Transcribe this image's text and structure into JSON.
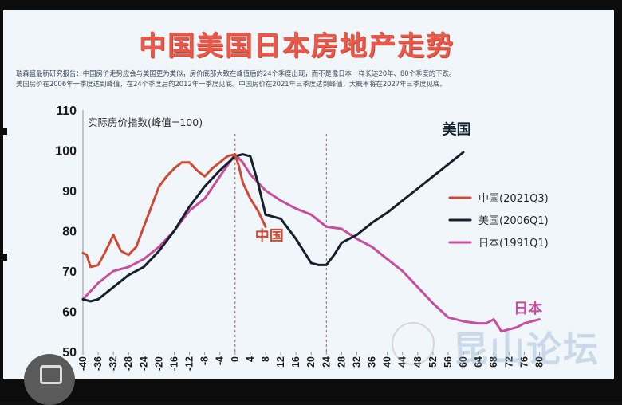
{
  "title": "中国美国日本房地产走势",
  "note": {
    "line1": "瑞森盛最新研究报告：中国房价走势应会与美国更为类似，房价底部大致在峰值后的24个季度出现，而不是像日本一样长达20年、80个季度的下跌。",
    "line2": "美国房价在2006年一季度达到峰值，在24个季度后的2012年一季度见底。中国房价在2021年三季度达到峰值，大概率将在2027年三季度见底。"
  },
  "watermark": "昆山论坛",
  "chart_data": {
    "type": "line",
    "ylabel": "实际房价指数(峰值=100)",
    "ylim": [
      50,
      110
    ],
    "yticks": [
      50,
      60,
      70,
      80,
      90,
      100,
      110
    ],
    "xlim": [
      -40,
      82
    ],
    "xticks": [
      -40,
      -36,
      -32,
      -28,
      -24,
      -20,
      -16,
      -12,
      -8,
      -4,
      0,
      4,
      8,
      12,
      16,
      20,
      24,
      28,
      32,
      36,
      40,
      44,
      48,
      52,
      56,
      60,
      64,
      68,
      72,
      76,
      80
    ],
    "xtick_labels": [
      "-40",
      "-36",
      "-32",
      "-28",
      "-24",
      "-20",
      "-16",
      "-12",
      "-8",
      "-4",
      "0",
      "4",
      "8",
      "12",
      "16",
      "20",
      "24",
      "28",
      "32",
      "36",
      "40",
      "44",
      "48",
      "52",
      "56",
      "60",
      "64",
      "68",
      "72",
      "76",
      "80"
    ],
    "reference_lines_x": [
      0,
      24
    ],
    "grid": false,
    "legend_position": "right",
    "series": [
      {
        "name": "中国(2021Q3)",
        "end_label": "中国",
        "color": "#cf4a35",
        "x": [
          -40,
          -39,
          -38,
          -36,
          -34,
          -32,
          -30,
          -28,
          -26,
          -24,
          -22,
          -20,
          -18,
          -16,
          -14,
          -12,
          -10,
          -8,
          -6,
          -4,
          -2,
          0,
          1,
          2,
          4,
          6,
          8
        ],
        "y": [
          74.5,
          74,
          71,
          71.5,
          75,
          79,
          75,
          74,
          76,
          81,
          86,
          91,
          93.5,
          95.5,
          97,
          97,
          95,
          93.5,
          95.5,
          97,
          98.5,
          99,
          96,
          92,
          88,
          85,
          81
        ]
      },
      {
        "name": "美国(2006Q1)",
        "end_label": "美国",
        "color": "#14202e",
        "x": [
          -40,
          -38,
          -36,
          -32,
          -28,
          -24,
          -20,
          -16,
          -12,
          -8,
          -4,
          0,
          2,
          4,
          6,
          8,
          12,
          16,
          20,
          22,
          24,
          26,
          28,
          32,
          36,
          40,
          44,
          48,
          52,
          56,
          60
        ],
        "y": [
          63,
          62.5,
          63,
          66,
          69,
          71,
          75,
          80,
          86,
          91,
          95,
          98.5,
          99,
          98.5,
          92,
          84,
          83,
          78,
          72,
          71.5,
          71.5,
          74,
          77,
          79,
          82,
          84.5,
          87.5,
          90.5,
          93.5,
          96.5,
          99.5
        ]
      },
      {
        "name": "日本(1991Q1)",
        "end_label": "日本",
        "color": "#c64e9c",
        "x": [
          -40,
          -36,
          -32,
          -28,
          -24,
          -20,
          -16,
          -12,
          -8,
          -4,
          0,
          2,
          4,
          8,
          12,
          16,
          20,
          24,
          28,
          32,
          36,
          40,
          44,
          48,
          52,
          56,
          60,
          64,
          66,
          68,
          70,
          72,
          74,
          76,
          80
        ],
        "y": [
          63,
          67,
          70,
          71,
          73,
          76,
          80,
          85,
          88,
          93.5,
          99,
          97,
          94,
          90,
          87.5,
          85.5,
          84,
          81,
          80.5,
          78,
          76,
          73,
          70,
          66,
          62,
          58.5,
          57.5,
          57,
          57,
          58,
          55,
          55.5,
          56,
          57,
          58
        ]
      }
    ]
  }
}
